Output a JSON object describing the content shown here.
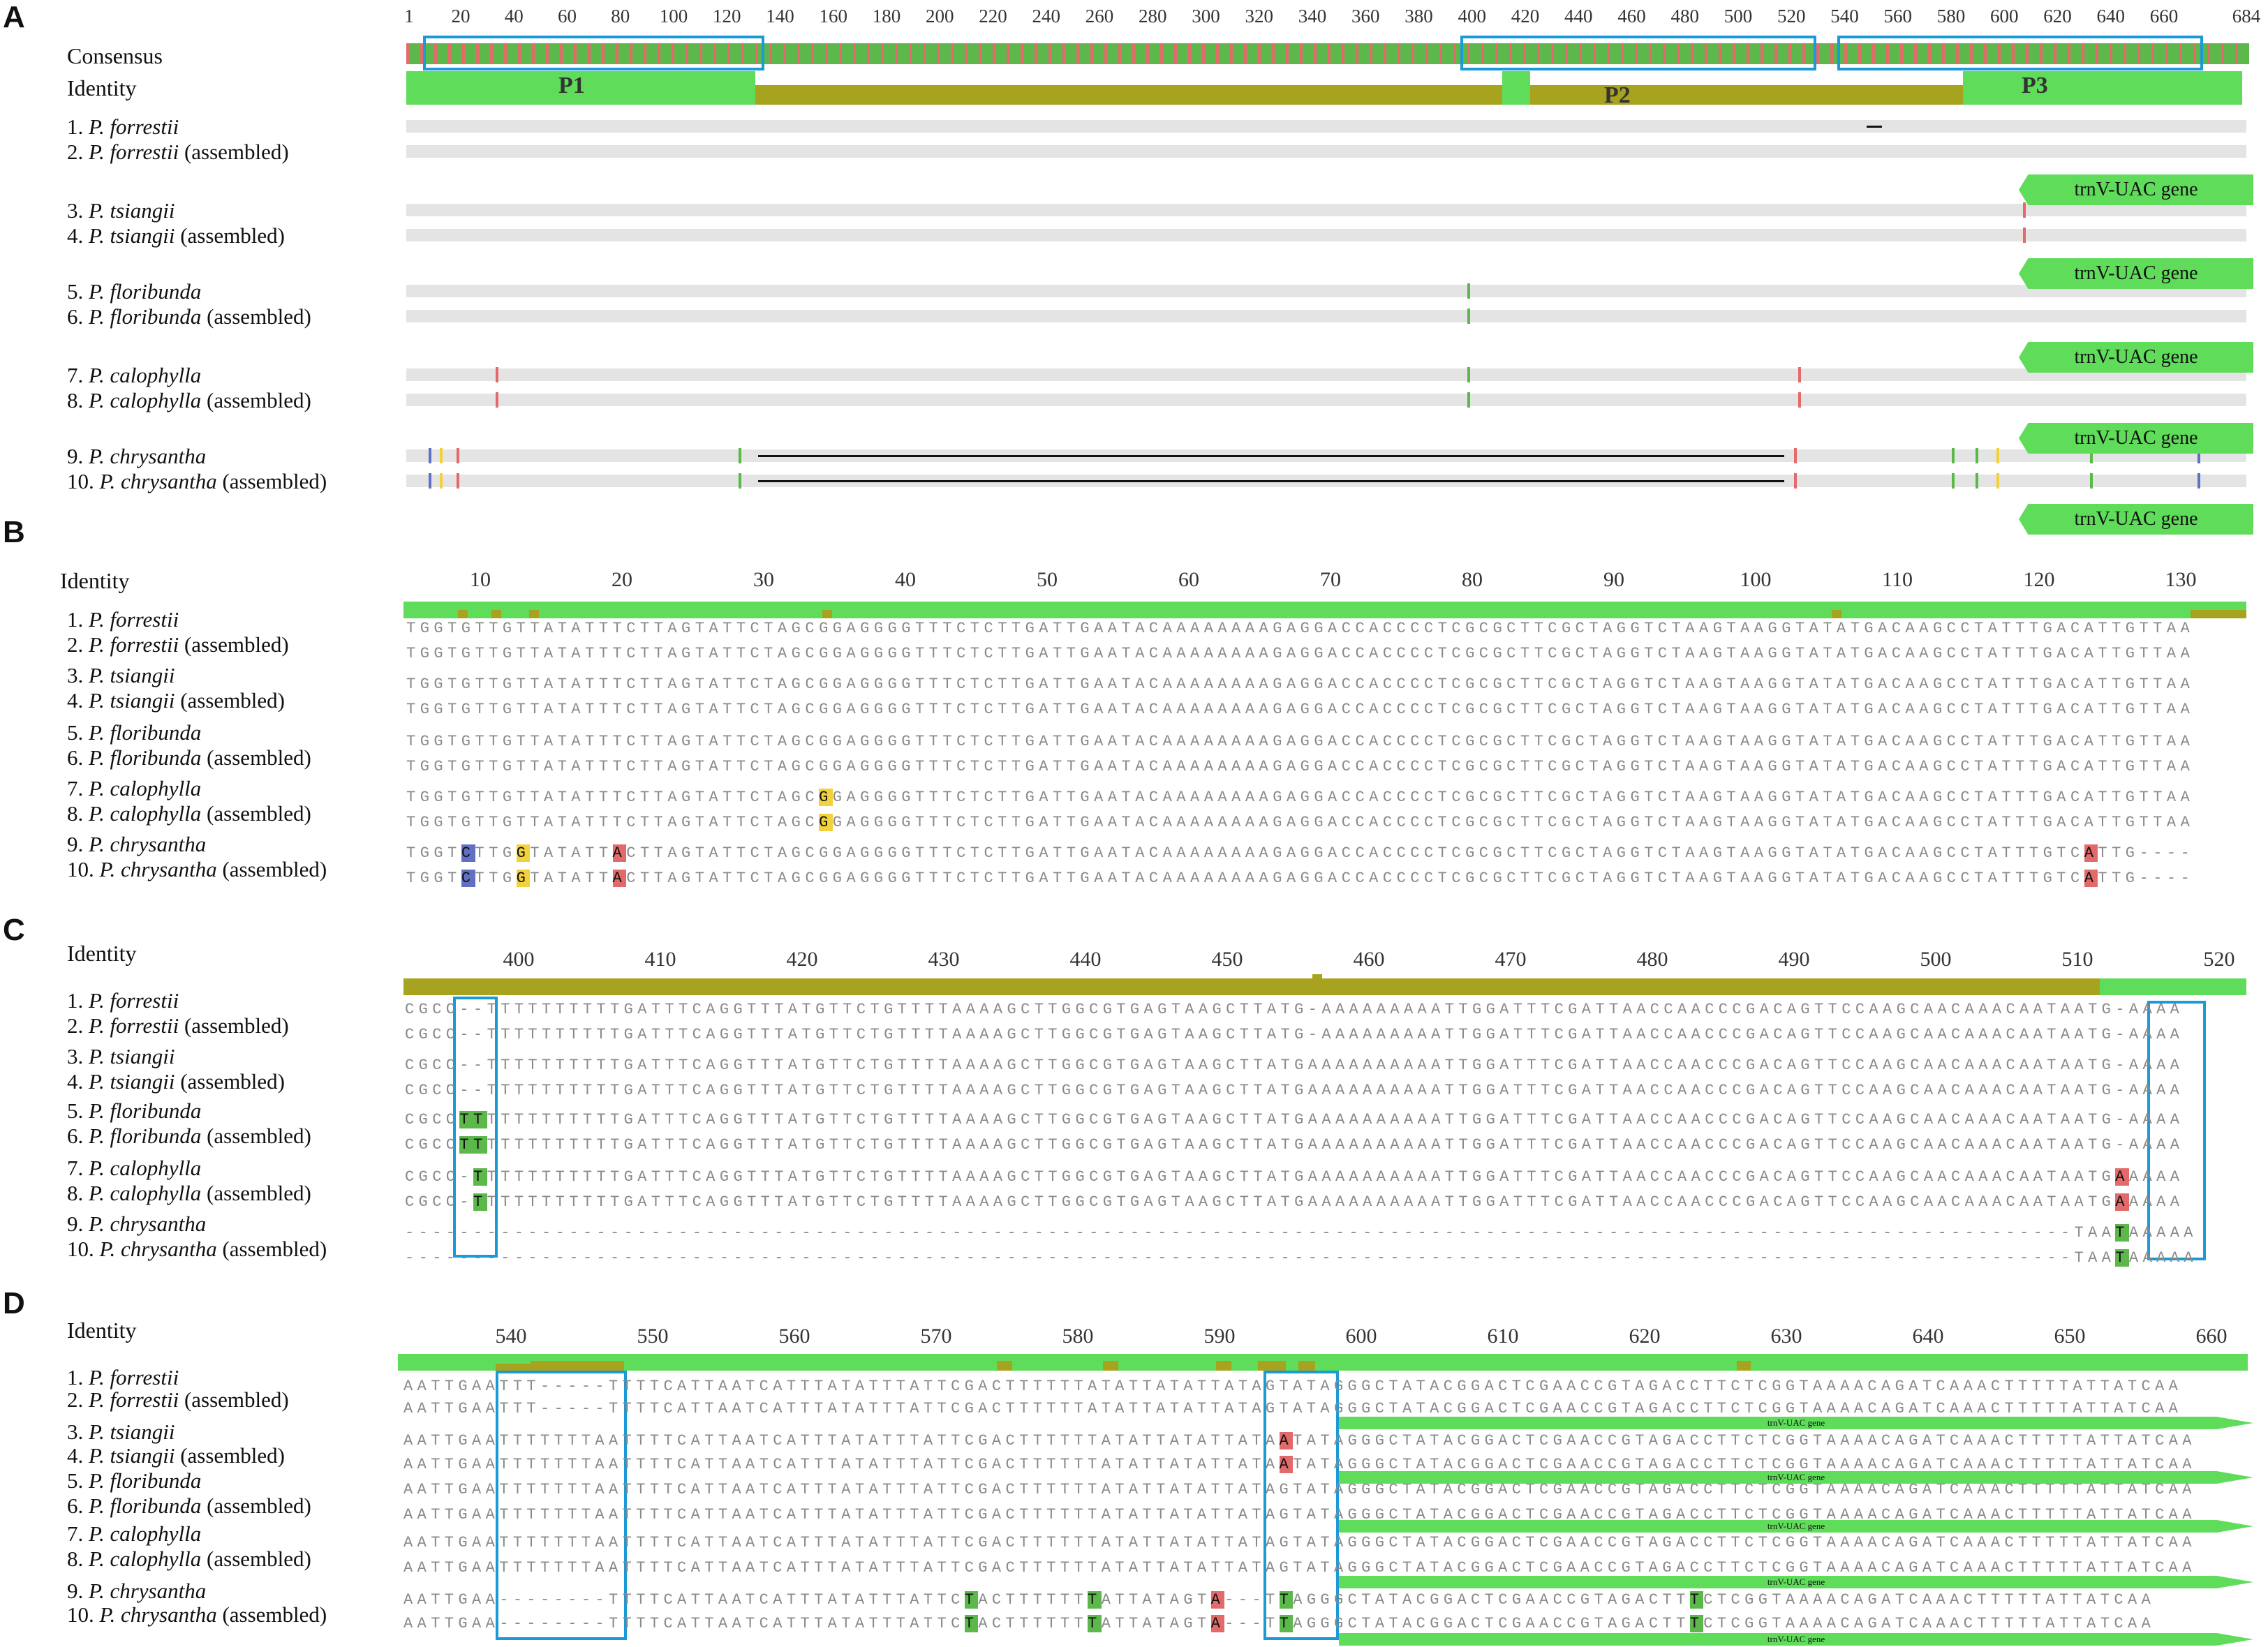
{
  "colors": {
    "identity_high": "#5fdc5a",
    "identity_mid": "#a7a31e",
    "identity_low": "#c01e1e",
    "box": "#1a9ad6",
    "base_A": "#e36a6a",
    "base_C": "#6170c2",
    "base_G": "#f2d23c",
    "base_T": "#5cb84a",
    "track": "#e4e4e4"
  },
  "taxa": [
    {
      "num": "1.",
      "name": "P. forrestii",
      "suffix": ""
    },
    {
      "num": "2.",
      "name": "P. forrestii",
      "suffix": "(assembled)"
    },
    {
      "num": "3.",
      "name": "P. tsiangii",
      "suffix": ""
    },
    {
      "num": "4.",
      "name": "P. tsiangii",
      "suffix": "(assembled)"
    },
    {
      "num": "5.",
      "name": "P. floribunda",
      "suffix": ""
    },
    {
      "num": "6.",
      "name": "P. floribunda",
      "suffix": "(assembled)"
    },
    {
      "num": "7.",
      "name": "P. calophylla",
      "suffix": ""
    },
    {
      "num": "8.",
      "name": "P. calophylla",
      "suffix": "(assembled)"
    },
    {
      "num": "9.",
      "name": "P. chrysantha",
      "suffix": ""
    },
    {
      "num": "10.",
      "name": "P. chrysantha",
      "suffix": "(assembled)"
    }
  ],
  "panelA": {
    "label": "A",
    "consensus_label": "Consensus",
    "identity_label": "Identity",
    "ruler": [
      "1",
      "20",
      "40",
      "60",
      "80",
      "100",
      "120",
      "140",
      "160",
      "180",
      "200",
      "220",
      "240",
      "260",
      "280",
      "300",
      "320",
      "340",
      "360",
      "380",
      "400",
      "420",
      "440",
      "460",
      "480",
      "500",
      "520",
      "540",
      "560",
      "580",
      "600",
      "620",
      "640",
      "660",
      "684"
    ],
    "regions": [
      "P1",
      "P2",
      "P3"
    ],
    "gene_label": "trnV-UAC gene"
  },
  "panelB": {
    "label": "B",
    "identity_label": "Identity",
    "ruler": [
      "10",
      "20",
      "30",
      "40",
      "50",
      "60",
      "70",
      "80",
      "90",
      "100",
      "110",
      "120",
      "130"
    ],
    "seq_ref": "TGGTGTTGTTATATTTCTTAGTATTCTAGCGGAGGGGTTTCTCTTGATTGAATACAAAAAAAAGAGGACCACCCCTCGCGCTTCGCTAGGTCTAAGTAAGGTATATGACAAGCCTATTTGACATTGTTAA",
    "seq_chrys": "TGGTCTTGGTATATTACTTAGTATTCTAGCGGAGGGGTTTCTCTTGATTGAATACAAAAAAAAGAGGACCACCCCTCGCGCTTCGCTAGGTCTAAGTAAGGTATATGACAAGCCTATTTGTCATTG----"
  },
  "panelC": {
    "label": "C",
    "identity_label": "Identity",
    "ruler": [
      "400",
      "410",
      "420",
      "430",
      "440",
      "450",
      "460",
      "470",
      "480",
      "490",
      "500",
      "510",
      "520"
    ],
    "seq_forrestii": "CGCC--TTTTTTTTTTGATTTCAGGTTTATGTTCTGTTTTAAAAGCTTGGCGTGAGTAAGCTTATG-AAAAAAAAATTGGATTTCGATTAACCAACCCGACAGTTCCAAGCAACAAACAATAATG-AAAA",
    "seq_tsiangii": "CGCC--TTTTTTTTTTGATTTCAGGTTTATGTTCTGTTTTAAAAGCTTGGCGTGAGTAAGCTTATGAAAAAAAAAATTGGATTTCGATTAACCAACCCGACAGTTCCAAGCAACAAACAATAATG-AAAA",
    "seq_floribunda": "CGCCTTTTTTTTTTTTGATTTCAGGTTTATGTTCTGTTTTAAAAGCTTGGCGTGAGTAAGCTTATGAAAAAAAAAATTGGATTTCGATTAACCAACCCGACAGTTCCAAGCAACAAACAATAATG-AAAA",
    "seq_calophylla": "CGCC-TTTTTTTTTTTGATTTCAGGTTTATGTTCTGTTTTAAAAGCTTGGCGTGAGTAAGCTTATGAAAAAAAAAATTGGATTTCGATTAACCAACCCGACAGTTCCAAGCAACAAACAATAATGAAAAA",
    "seq_chrysantha": "--------------------------------------------------------------------------------------------------------------------------TAATAAAAA"
  },
  "panelD": {
    "label": "D",
    "identity_label": "Identity",
    "ruler": [
      "540",
      "550",
      "560",
      "570",
      "580",
      "590",
      "600",
      "610",
      "620",
      "630",
      "640",
      "650",
      "660"
    ],
    "gene_label": "trnV-UAC gene",
    "seq_forrestii": "AATTGAATTT-----TTTTCATTAATCATTTATATTTATTCGACTTTTTTATATTATATTATAGTATAGGGCTATACGGACTCGAACCGTAGACCTTCTCGGTAAAACAGATCAAACTTTTTATTATCAA",
    "seq_tsiangii": "AATTGAATTTTTTTAATTTTCATTAATCATTTATATTTATTCGACTTTTTTATATTATATTATAATATAGGGCTATACGGACTCGAACCGTAGACCTTCTCGGTAAAACAGATCAAACTTTTTATTATCAA",
    "seq_floribunda": "AATTGAATTTTTTTAATTTTCATTAATCATTTATATTTATTCGACTTTTTTATATTATATTATAGTATAGGGCTATACGGACTCGAACCGTAGACCTTCTCGGTAAAACAGATCAAACTTTTTATTATCAA",
    "seq_calophylla": "AATTGAATTTTTTTAATTTTCATTAATCATTTATATTTATTCGACTTTTTTATATTATATTATAGTATAGGGCTATACGGACTCGAACCGTAGACCTTCTCGGTAAAACAGATCAAACTTTTTATTATCAA",
    "seq_chrysantha": "AATTGAA--------TTTTCATTAATCATTTATATTTATTCTACTTTTTTTATTATAGTA---TTAGGGCTATACGGACTCGAACCGTAGACTTTCTCGGTAAAACAGATCAAACTTTTTATTATCAA"
  }
}
